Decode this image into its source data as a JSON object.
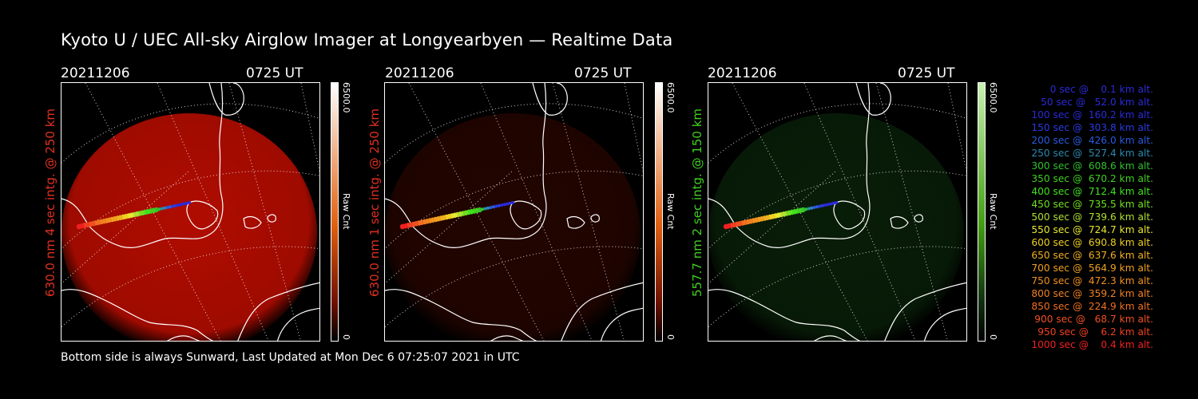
{
  "title": "Kyoto U / UEC All-sky Airglow Imager at Longyearbyen — Realtime Data",
  "footer": "Bottom side is always Sunward, Last Updated at Mon Dec  6 07:25:07 2021 in UTC",
  "panels": [
    {
      "date": "20211206",
      "time": "0725 UT",
      "side_label": "630.0 nm 4 sec intg. @ 250 km",
      "label_color": "#e03020",
      "cbar_max": "6500.0",
      "cbar_min": "0",
      "cbar_unit": "Raw Cnt",
      "glow_color": "#b00c00",
      "glow_level": 1.0
    },
    {
      "date": "20211206",
      "time": "0725 UT",
      "side_label": "630.0 nm 1 sec intg. @ 250 km",
      "label_color": "#e03020",
      "cbar_max": "6500.0",
      "cbar_min": "0",
      "cbar_unit": "Raw Cnt",
      "glow_color": "#380800",
      "glow_level": 0.6
    },
    {
      "date": "20211206",
      "time": "0725 UT",
      "side_label": "557.7 nm 2 sec intg. @ 150 km",
      "label_color": "#40d020",
      "cbar_max": "6500.0",
      "cbar_min": "0",
      "cbar_unit": "Raw Cnt",
      "glow_color": "#103a10",
      "glow_level": 0.5
    }
  ],
  "legend": [
    {
      "text": "0 sec @    0.1 km alt.",
      "color": "#2a2ad8"
    },
    {
      "text": "50 sec @   52.0 km alt.",
      "color": "#2a2ad8"
    },
    {
      "text": "100 sec @  160.2 km alt.",
      "color": "#2a2ad8"
    },
    {
      "text": "150 sec @  303.8 km alt.",
      "color": "#2a3ae0"
    },
    {
      "text": "200 sec @  426.0 km alt.",
      "color": "#2a5ae0"
    },
    {
      "text": "250 sec @  527.4 km alt.",
      "color": "#2a8ab0"
    },
    {
      "text": "300 sec @  608.6 km alt.",
      "color": "#30c030"
    },
    {
      "text": "350 sec @  670.2 km alt.",
      "color": "#40d020"
    },
    {
      "text": "400 sec @  712.4 km alt.",
      "color": "#40e020"
    },
    {
      "text": "450 sec @  735.5 km alt.",
      "color": "#70e020"
    },
    {
      "text": "500 sec @  739.6 km alt.",
      "color": "#b0e030"
    },
    {
      "text": "550 sec @  724.7 km alt.",
      "color": "#e8e830"
    },
    {
      "text": "600 sec @  690.8 km alt.",
      "color": "#f0d020"
    },
    {
      "text": "650 sec @  637.6 km alt.",
      "color": "#f0b020"
    },
    {
      "text": "700 sec @  564.9 km alt.",
      "color": "#f0a020"
    },
    {
      "text": "750 sec @  472.3 km alt.",
      "color": "#f09020"
    },
    {
      "text": "800 sec @  359.2 km alt.",
      "color": "#f08020"
    },
    {
      "text": "850 sec @  224.9 km alt.",
      "color": "#f07020"
    },
    {
      "text": "900 sec @   68.7 km alt.",
      "color": "#f05020"
    },
    {
      "text": "950 sec @    6.2 km alt.",
      "color": "#f04020"
    },
    {
      "text": "1000 sec @    0.4 km alt.",
      "color": "#f02020"
    }
  ]
}
